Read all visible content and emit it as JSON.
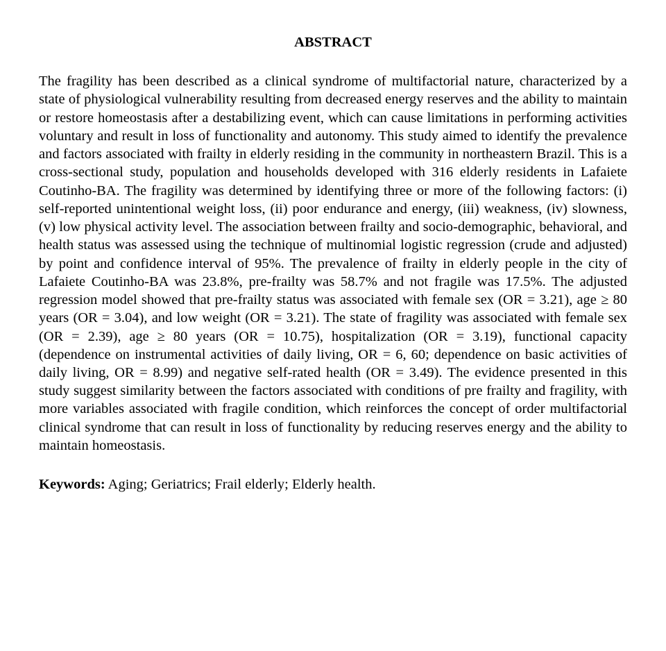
{
  "title": "ABSTRACT",
  "body": "The fragility has been described as a clinical syndrome of multifactorial nature, characterized by a state of physiological vulnerability resulting from decreased energy reserves and the ability to maintain or restore homeostasis after a destabilizing event, which can cause limitations in performing activities voluntary and result in loss of functionality and autonomy. This study aimed to identify the prevalence and factors associated with frailty in elderly residing in the community in northeastern Brazil. This is a cross-sectional study, population and households developed with 316 elderly residents in Lafaiete Coutinho-BA. The fragility was determined by identifying three or more of the following factors: (i) self-reported unintentional weight loss, (ii) poor endurance and energy, (iii) weakness, (iv) slowness, (v) low physical activity level. The association between frailty and socio-demographic, behavioral, and health status was assessed using the technique of multinomial logistic regression (crude and adjusted) by point and confidence interval of 95%. The prevalence of frailty in elderly people in the city of Lafaiete Coutinho-BA was 23.8%, pre-frailty was 58.7% and not fragile was 17.5%. The adjusted regression model showed that pre-frailty status was associated with female sex (OR = 3.21), age ≥ 80 years (OR = 3.04), and low weight (OR = 3.21). The state of fragility was associated with female sex (OR = 2.39), age ≥ 80 years (OR = 10.75), hospitalization (OR = 3.19), functional capacity (dependence on instrumental activities of daily living, OR = 6, 60; dependence on basic activities of daily living, OR = 8.99) and negative self-rated health (OR = 3.49). The evidence presented in this study suggest similarity between the factors associated with conditions of pre frailty and fragility, with more variables associated with fragile condition, which reinforces the concept of order multifactorial clinical syndrome that can result in loss of functionality by reducing reserves energy and the ability to maintain homeostasis.",
  "keywords_label": "Keywords:",
  "keywords_text": " Aging; Geriatrics; Frail elderly; Elderly health."
}
